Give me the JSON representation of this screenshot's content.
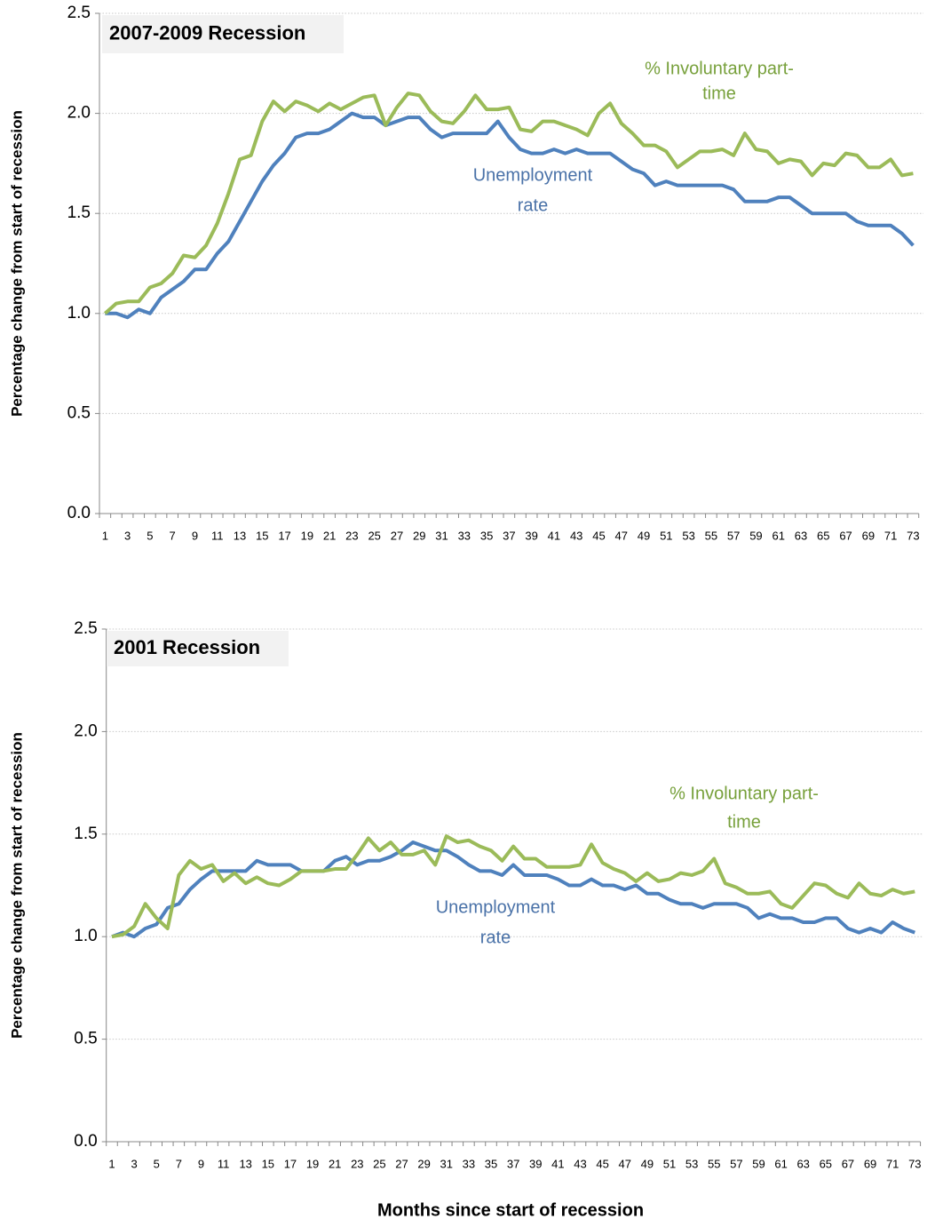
{
  "chart_data": [
    {
      "type": "line",
      "title": "2007-2009 Recession",
      "y_label": "Percentage change from start of recession",
      "categories": [
        1,
        null,
        3,
        null,
        5,
        null,
        7,
        null,
        9,
        null,
        11,
        null,
        13,
        null,
        15,
        null,
        17,
        null,
        19,
        null,
        21,
        null,
        23,
        null,
        25,
        null,
        27,
        null,
        29,
        null,
        31,
        null,
        33,
        null,
        35,
        null,
        37,
        null,
        39,
        null,
        41,
        null,
        43,
        null,
        45,
        null,
        47,
        null,
        49,
        null,
        51,
        null,
        53,
        null,
        55,
        null,
        57,
        null,
        59,
        null,
        61,
        null,
        63,
        null,
        65,
        null,
        67,
        null,
        69,
        null,
        71,
        null,
        73
      ],
      "ylim": [
        0,
        2.5
      ],
      "yticks": [
        {
          "value": 0,
          "label": "0.0"
        },
        {
          "value": 0.5,
          "label": "0.5"
        },
        {
          "value": 1,
          "label": "1.0"
        },
        {
          "value": 1.5,
          "label": "1.5"
        },
        {
          "value": 2,
          "label": "2.0"
        },
        {
          "value": 2.5,
          "label": "2.5"
        }
      ],
      "grid": true,
      "series": [
        {
          "label": [
            "Unemployment",
            "rate"
          ],
          "color": "#4f81bd",
          "label_color": "#4a72a8",
          "values": [
            1.0,
            1.0,
            0.98,
            1.02,
            1.0,
            1.08,
            1.12,
            1.16,
            1.22,
            1.22,
            1.3,
            1.36,
            1.46,
            1.56,
            1.66,
            1.74,
            1.8,
            1.88,
            1.9,
            1.9,
            1.92,
            1.96,
            2.0,
            1.98,
            1.98,
            1.94,
            1.96,
            1.98,
            1.98,
            1.92,
            1.88,
            1.9,
            1.9,
            1.9,
            1.9,
            1.96,
            1.88,
            1.82,
            1.8,
            1.8,
            1.82,
            1.8,
            1.82,
            1.8,
            1.8,
            1.8,
            1.76,
            1.72,
            1.7,
            1.64,
            1.66,
            1.64,
            1.64,
            1.64,
            1.64,
            1.64,
            1.62,
            1.56,
            1.56,
            1.56,
            1.58,
            1.58,
            1.54,
            1.5,
            1.5,
            1.5,
            1.5,
            1.46,
            1.44,
            1.44,
            1.44,
            1.4,
            1.34
          ]
        },
        {
          "label": [
            "% Involuntary part-",
            "time"
          ],
          "color": "#9bbb59",
          "label_color": "#77a03b",
          "values": [
            1.0,
            1.05,
            1.06,
            1.06,
            1.13,
            1.15,
            1.2,
            1.29,
            1.28,
            1.34,
            1.45,
            1.6,
            1.77,
            1.79,
            1.96,
            2.06,
            2.01,
            2.06,
            2.04,
            2.01,
            2.05,
            2.02,
            2.05,
            2.08,
            2.09,
            1.94,
            2.03,
            2.1,
            2.09,
            2.01,
            1.96,
            1.95,
            2.01,
            2.09,
            2.02,
            2.02,
            2.03,
            1.92,
            1.91,
            1.96,
            1.96,
            1.94,
            1.92,
            1.89,
            2.0,
            2.05,
            1.95,
            1.9,
            1.84,
            1.84,
            1.81,
            1.73,
            1.77,
            1.81,
            1.81,
            1.82,
            1.79,
            1.9,
            1.82,
            1.81,
            1.75,
            1.77,
            1.76,
            1.69,
            1.75,
            1.74,
            1.8,
            1.79,
            1.73,
            1.73,
            1.77,
            1.69,
            1.7
          ]
        }
      ]
    },
    {
      "type": "line",
      "title": "2001 Recession",
      "y_label": "Percentage change from start of recession",
      "categories": [
        1,
        null,
        3,
        null,
        5,
        null,
        7,
        null,
        9,
        null,
        11,
        null,
        13,
        null,
        15,
        null,
        17,
        null,
        19,
        null,
        21,
        null,
        23,
        null,
        25,
        null,
        27,
        null,
        29,
        null,
        31,
        null,
        33,
        null,
        35,
        null,
        37,
        null,
        39,
        null,
        41,
        null,
        43,
        null,
        45,
        null,
        47,
        null,
        49,
        null,
        51,
        null,
        53,
        null,
        55,
        null,
        57,
        null,
        59,
        null,
        61,
        null,
        63,
        null,
        65,
        null,
        67,
        null,
        69,
        null,
        71,
        null,
        73
      ],
      "ylim": [
        0,
        2.5
      ],
      "yticks": [
        {
          "value": 0,
          "label": "0.0"
        },
        {
          "value": 0.5,
          "label": "0.5"
        },
        {
          "value": 1,
          "label": "1.0"
        },
        {
          "value": 1.5,
          "label": "1.5"
        },
        {
          "value": 2,
          "label": "2.0"
        },
        {
          "value": 2.5,
          "label": "2.5"
        }
      ],
      "grid": true,
      "series": [
        {
          "label": [
            "Unemployment",
            "rate"
          ],
          "color": "#4f81bd",
          "label_color": "#4a72a8",
          "values": [
            1.0,
            1.02,
            1.0,
            1.04,
            1.06,
            1.14,
            1.16,
            1.23,
            1.28,
            1.32,
            1.32,
            1.32,
            1.32,
            1.37,
            1.35,
            1.35,
            1.35,
            1.32,
            1.32,
            1.32,
            1.37,
            1.39,
            1.35,
            1.37,
            1.37,
            1.39,
            1.42,
            1.46,
            1.44,
            1.42,
            1.42,
            1.39,
            1.35,
            1.32,
            1.32,
            1.3,
            1.35,
            1.3,
            1.3,
            1.3,
            1.28,
            1.25,
            1.25,
            1.28,
            1.25,
            1.25,
            1.23,
            1.25,
            1.21,
            1.21,
            1.18,
            1.16,
            1.16,
            1.14,
            1.16,
            1.16,
            1.16,
            1.14,
            1.09,
            1.11,
            1.09,
            1.09,
            1.07,
            1.07,
            1.09,
            1.09,
            1.04,
            1.02,
            1.04,
            1.02,
            1.07,
            1.04,
            1.02
          ]
        },
        {
          "label": [
            "% Involuntary part-",
            "time"
          ],
          "color": "#9bbb59",
          "label_color": "#77a03b",
          "values": [
            1.0,
            1.01,
            1.05,
            1.16,
            1.09,
            1.04,
            1.3,
            1.37,
            1.33,
            1.35,
            1.27,
            1.31,
            1.26,
            1.29,
            1.26,
            1.25,
            1.28,
            1.32,
            1.32,
            1.32,
            1.33,
            1.33,
            1.4,
            1.48,
            1.42,
            1.46,
            1.4,
            1.4,
            1.42,
            1.35,
            1.49,
            1.46,
            1.47,
            1.44,
            1.42,
            1.37,
            1.44,
            1.38,
            1.38,
            1.34,
            1.34,
            1.34,
            1.35,
            1.45,
            1.36,
            1.33,
            1.31,
            1.27,
            1.31,
            1.27,
            1.28,
            1.31,
            1.3,
            1.32,
            1.38,
            1.26,
            1.24,
            1.21,
            1.21,
            1.22,
            1.16,
            1.14,
            1.2,
            1.26,
            1.25,
            1.21,
            1.19,
            1.26,
            1.21,
            1.2,
            1.23,
            1.21,
            1.22
          ]
        }
      ]
    }
  ],
  "x_label": "Months since start of recession"
}
